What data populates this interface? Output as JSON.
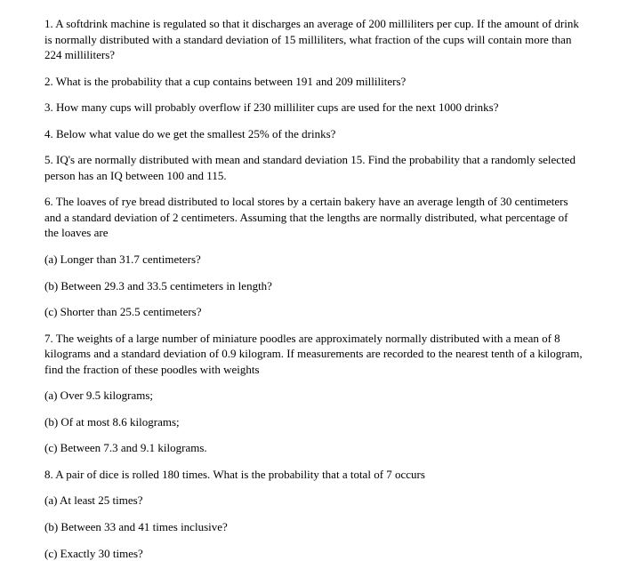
{
  "q1": "1. A softdrink machine is regulated so that it discharges an average of 200 milliliters per cup. If the amount of drink is normally distributed with a standard deviation of 15 milliliters, what fraction of the cups will contain more than 224 milliliters?",
  "q2": "2. What is the probability that a cup contains between 191 and 209 milliliters?",
  "q3": "3. How many cups will probably overflow if 230 milliliter cups are used for the next 1000 drinks?",
  "q4": "4. Below what value do we get the smallest 25% of the drinks?",
  "q5": "5. IQ's are normally distributed with mean and standard deviation 15. Find the probability that a randomly selected person has an IQ between 100 and 115.",
  "q6": "6. The loaves of rye bread distributed to local stores by a certain bakery have an average length of 30 centimeters and a standard deviation of 2 centimeters. Assuming that the lengths are normally distributed, what percentage of the loaves are",
  "q6a": "(a) Longer than 31.7 centimeters?",
  "q6b": "(b) Between 29.3 and 33.5 centimeters in length?",
  "q6c": "(c) Shorter than 25.5 centimeters?",
  "q7": "7. The weights of a large number of miniature poodles are approximately normally distributed with a mean of 8 kilograms and a standard deviation of 0.9 kilogram. If measurements are recorded to the nearest tenth of a kilogram, find the fraction of these poodles with weights",
  "q7a": "(a) Over 9.5 kilograms;",
  "q7b": "(b) Of at most 8.6 kilograms;",
  "q7c": "(c) Between 7.3 and 9.1 kilograms.",
  "q8": "8. A pair of dice is rolled 180 times. What is the probability that a total of 7 occurs",
  "q8a": "(a) At least 25 times?",
  "q8b": "(b) Between 33 and 41 times inclusive?",
  "q8c": "(c) Exactly 30 times?"
}
